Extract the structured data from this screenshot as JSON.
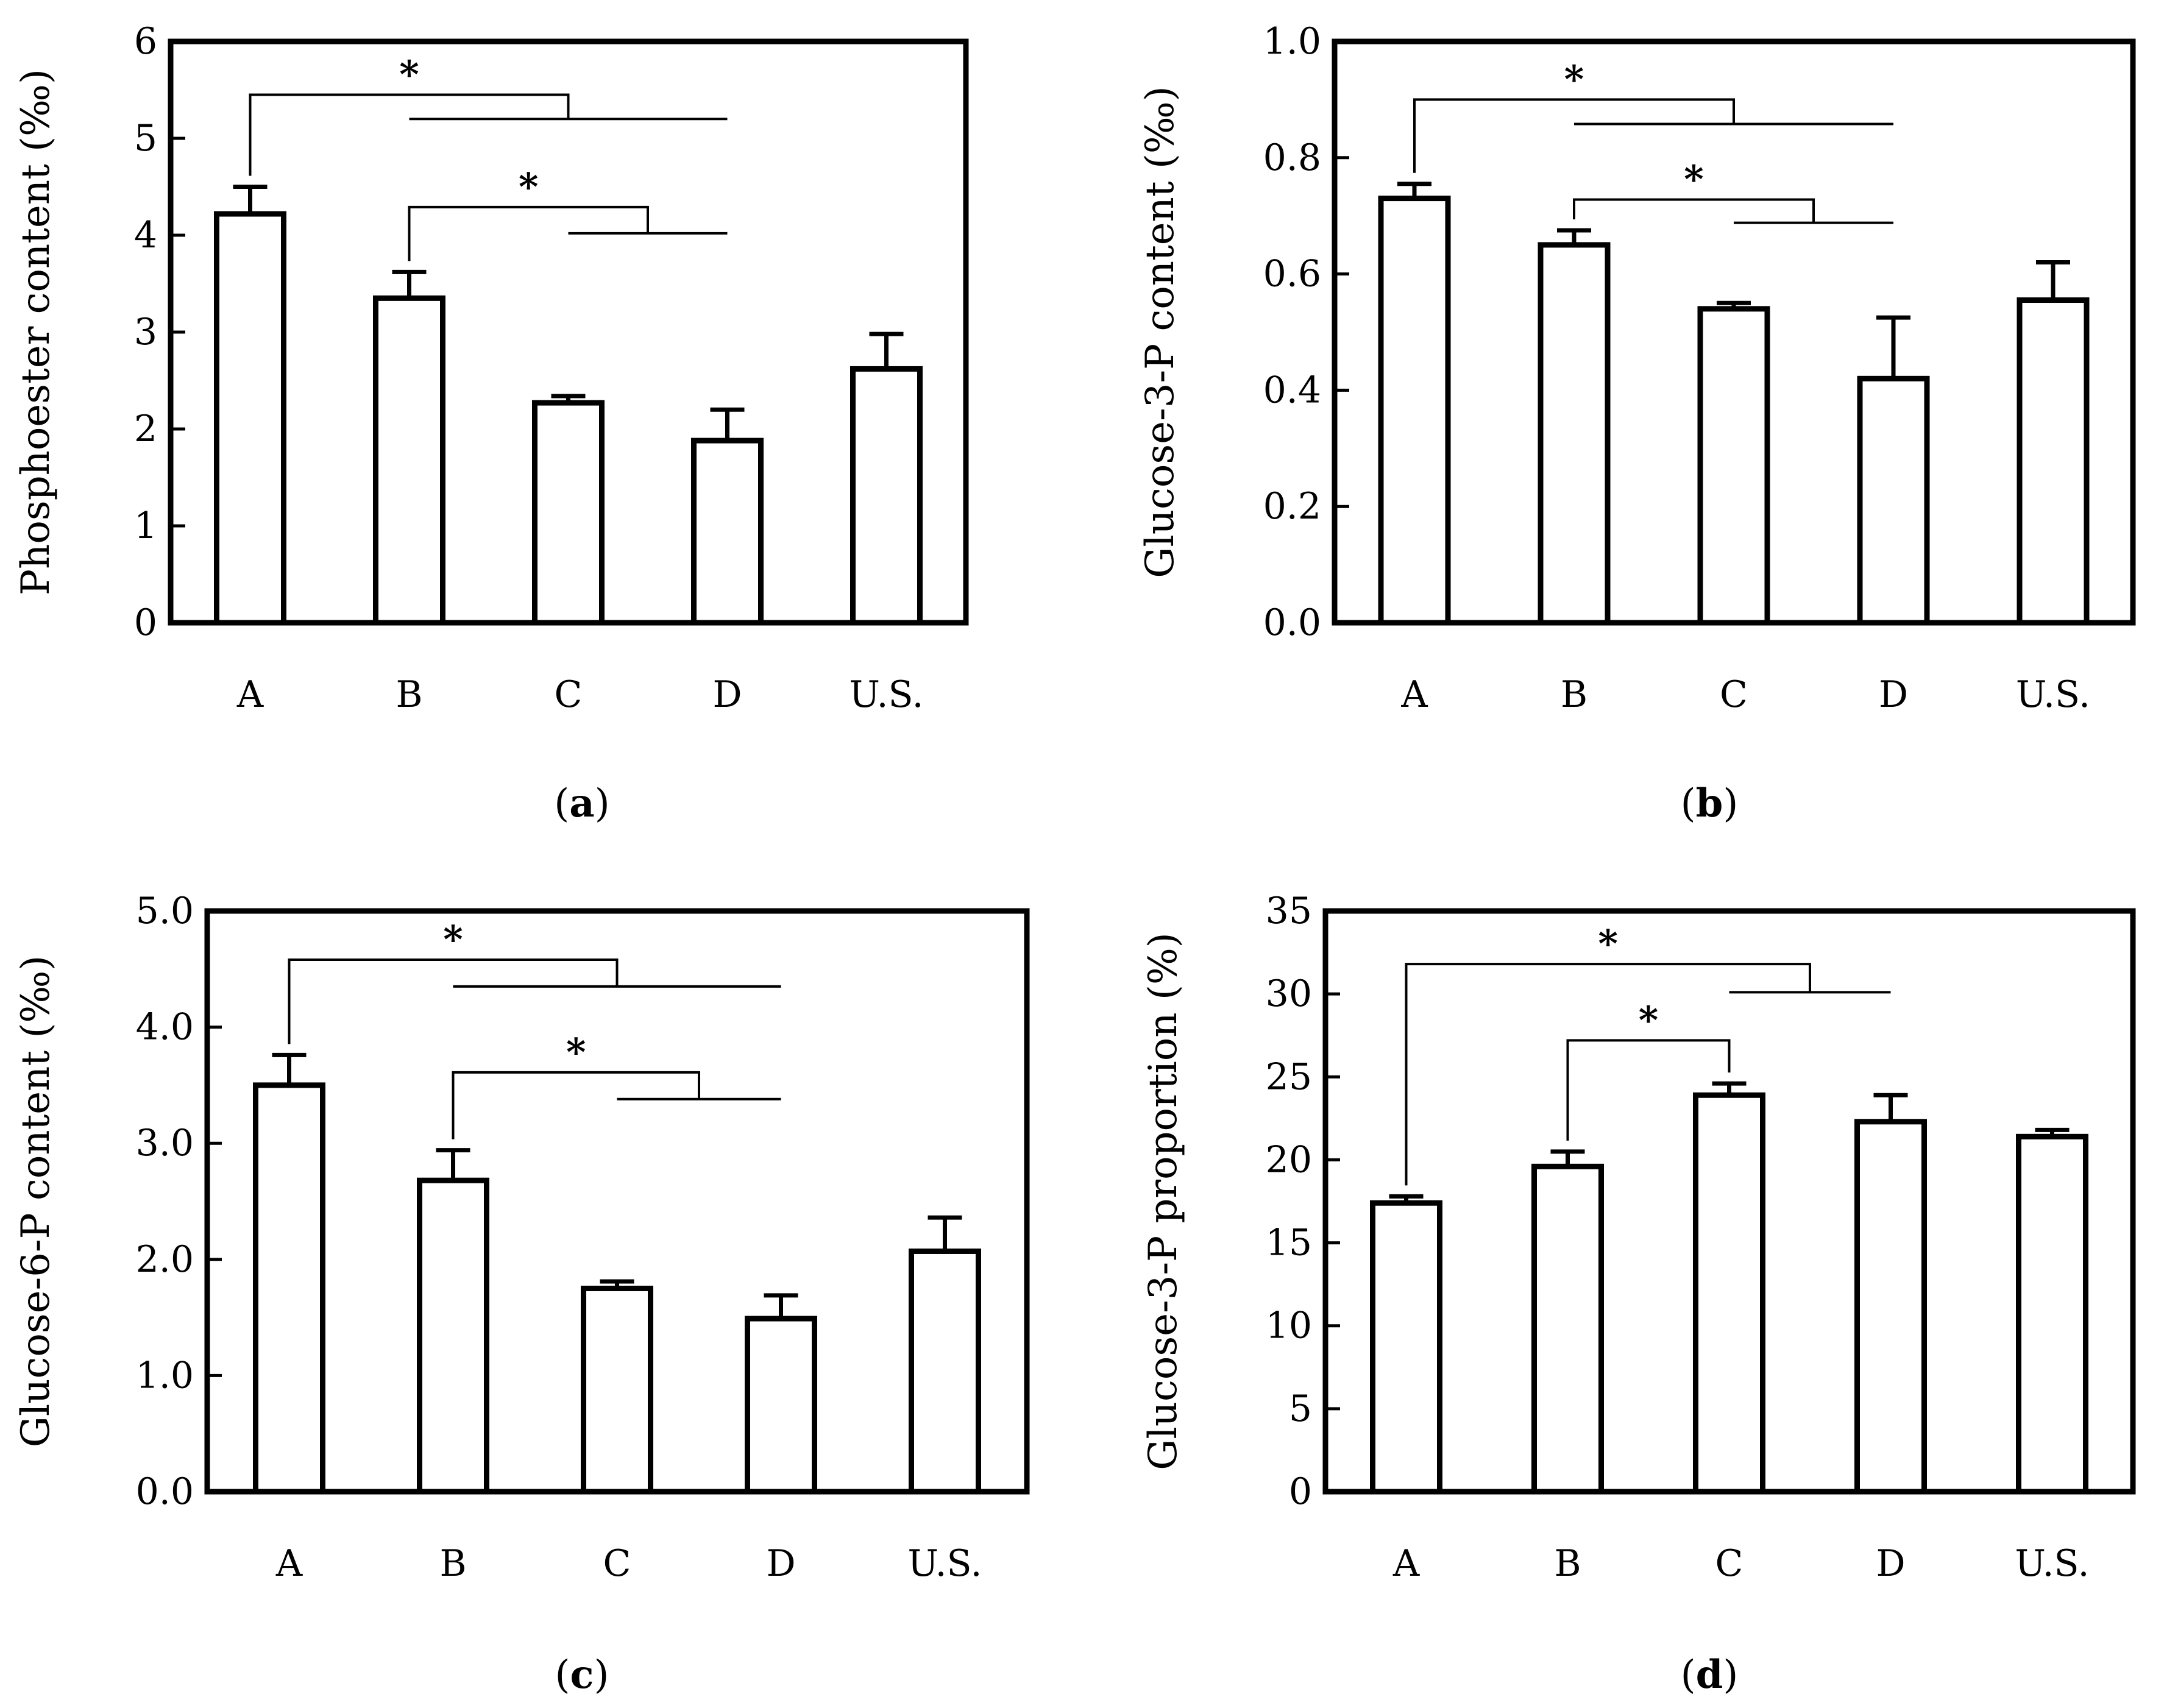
{
  "figure": {
    "panels": [
      {
        "label_prefix": "(",
        "label": "a",
        "label_suffix": ")"
      },
      {
        "label_prefix": "(",
        "label": "b",
        "label_suffix": ")"
      },
      {
        "label_prefix": "(",
        "label": "c",
        "label_suffix": ")"
      },
      {
        "label_prefix": "(",
        "label": "d",
        "label_suffix": ")"
      }
    ]
  },
  "chart_data": [
    {
      "id": "a",
      "type": "bar",
      "ylabel": "Phosphoester content (‰)",
      "categories": [
        "A",
        "B",
        "C",
        "D",
        "U.S."
      ],
      "values": [
        4.22,
        3.35,
        2.27,
        1.88,
        2.62
      ],
      "errors": [
        0.28,
        0.27,
        0.07,
        0.32,
        0.36
      ],
      "ylim": [
        0,
        6
      ],
      "yticks": [
        0,
        1,
        2,
        3,
        4,
        5,
        6
      ],
      "tick_labels": [
        "0",
        "1",
        "2",
        "3",
        "4",
        "5",
        "6"
      ],
      "significance": [
        {
          "label": "*",
          "from": 0,
          "to": [
            1,
            3
          ],
          "top": 5.45,
          "drop": 0.25
        },
        {
          "label": "*",
          "from": 1,
          "to": [
            2,
            3
          ],
          "top": 4.29,
          "drop": 0.27
        }
      ]
    },
    {
      "id": "b",
      "type": "bar",
      "ylabel": "Glucose-3-P content (‰)",
      "categories": [
        "A",
        "B",
        "C",
        "D",
        "U.S."
      ],
      "values": [
        0.73,
        0.65,
        0.54,
        0.42,
        0.555
      ],
      "errors": [
        0.025,
        0.025,
        0.01,
        0.105,
        0.065
      ],
      "ylim": [
        0,
        1.0
      ],
      "yticks": [
        0,
        0.2,
        0.4,
        0.6,
        0.8,
        1.0
      ],
      "tick_labels": [
        "0.0",
        "0.2",
        "0.4",
        "0.6",
        "0.8",
        "1.0"
      ],
      "significance": [
        {
          "label": "*",
          "from": 0,
          "to": [
            1,
            3
          ],
          "top": 0.9,
          "drop": 0.042
        },
        {
          "label": "*",
          "from": 1,
          "to": [
            2,
            3
          ],
          "top": 0.728,
          "drop": 0.04
        }
      ]
    },
    {
      "id": "c",
      "type": "bar",
      "ylabel": "Glucose-6-P content (‰)",
      "categories": [
        "A",
        "B",
        "C",
        "D",
        "U.S."
      ],
      "values": [
        3.5,
        2.68,
        1.75,
        1.49,
        2.07
      ],
      "errors": [
        0.26,
        0.26,
        0.06,
        0.2,
        0.29
      ],
      "ylim": [
        0,
        5.0
      ],
      "yticks": [
        0,
        1,
        2,
        3,
        4,
        5
      ],
      "tick_labels": [
        "0.0",
        "1.0",
        "2.0",
        "3.0",
        "4.0",
        "5.0"
      ],
      "significance": [
        {
          "label": "*",
          "from": 0,
          "to": [
            1,
            3
          ],
          "top": 4.58,
          "drop": 0.23
        },
        {
          "label": "*",
          "from": 1,
          "to": [
            2,
            3
          ],
          "top": 3.61,
          "drop": 0.23
        }
      ]
    },
    {
      "id": "d",
      "type": "bar",
      "ylabel": "Glucose-3-P proportion (%)",
      "categories": [
        "A",
        "B",
        "C",
        "D",
        "U.S."
      ],
      "values": [
        17.4,
        19.6,
        23.9,
        22.3,
        21.4
      ],
      "errors": [
        0.4,
        0.9,
        0.7,
        1.6,
        0.4
      ],
      "ylim": [
        0,
        35
      ],
      "yticks": [
        0,
        5,
        10,
        15,
        20,
        25,
        30,
        35
      ],
      "tick_labels": [
        "0",
        "5",
        "10",
        "15",
        "20",
        "25",
        "30",
        "35"
      ],
      "significance": [
        {
          "label": "*",
          "from": 0,
          "to": [
            2,
            3
          ],
          "top": 31.8,
          "drop": 1.7
        },
        {
          "label": "*",
          "from": 1,
          "to": [
            2
          ],
          "top": 27.2,
          "drop": 0
        }
      ]
    }
  ]
}
